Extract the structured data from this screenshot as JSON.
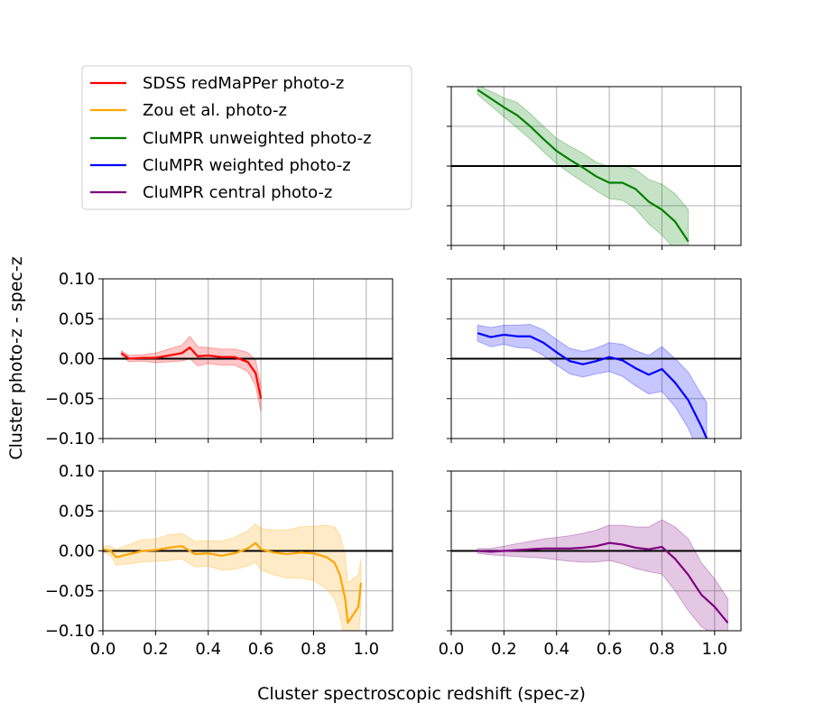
{
  "figure": {
    "ylabel": "Cluster photo-z - spec-z",
    "xlabel": "Cluster spectroscopic redshift (spec-z)"
  },
  "legend": {
    "placement": "top-left",
    "entries": [
      {
        "label": "SDSS redMaPPer photo-z",
        "color": "#ff0000"
      },
      {
        "label": "Zou et al. photo-z",
        "color": "#ffa500"
      },
      {
        "label": "CluMPR unweighted photo-z",
        "color": "#008000"
      },
      {
        "label": "CluMPR weighted photo-z",
        "color": "#0000ff"
      },
      {
        "label": "CluMPR central photo-z",
        "color": "#800080"
      }
    ]
  },
  "axes": {
    "xticks": [
      "0.0",
      "0.2",
      "0.4",
      "0.6",
      "0.8",
      "1.0"
    ],
    "yticks": [
      "0.10",
      "0.05",
      "0.00",
      "−0.05",
      "−0.10"
    ]
  },
  "chart_data": [
    {
      "type": "line",
      "series_name": "CluMPR unweighted photo-z",
      "color": "#008000",
      "xlim": [
        0,
        1.1
      ],
      "ylim": [
        -0.1,
        0.1
      ],
      "grid": true,
      "x": [
        0.1,
        0.15,
        0.2,
        0.25,
        0.3,
        0.35,
        0.4,
        0.45,
        0.5,
        0.55,
        0.6,
        0.65,
        0.7,
        0.75,
        0.8,
        0.85,
        0.9
      ],
      "y": [
        0.096,
        0.085,
        0.074,
        0.064,
        0.05,
        0.034,
        0.019,
        0.008,
        -0.002,
        -0.013,
        -0.021,
        -0.021,
        -0.029,
        -0.045,
        -0.055,
        -0.07,
        -0.095
      ],
      "band_halfwidth": [
        0.006,
        0.009,
        0.012,
        0.016,
        0.016,
        0.016,
        0.016,
        0.017,
        0.018,
        0.018,
        0.02,
        0.022,
        0.025,
        0.028,
        0.032,
        0.035,
        0.04
      ]
    },
    {
      "type": "line",
      "series_name": "SDSS redMaPPer photo-z",
      "color": "#ff0000",
      "xlim": [
        0,
        1.1
      ],
      "ylim": [
        -0.1,
        0.1
      ],
      "grid": true,
      "x": [
        0.07,
        0.1,
        0.15,
        0.2,
        0.25,
        0.3,
        0.33,
        0.36,
        0.4,
        0.45,
        0.5,
        0.55,
        0.58,
        0.6
      ],
      "y": [
        0.007,
        0.0,
        0.001,
        0.001,
        0.004,
        0.007,
        0.014,
        0.003,
        0.004,
        0.002,
        0.002,
        -0.004,
        -0.018,
        -0.05
      ],
      "band_halfwidth": [
        0.003,
        0.004,
        0.004,
        0.006,
        0.008,
        0.01,
        0.014,
        0.012,
        0.01,
        0.01,
        0.01,
        0.012,
        0.016,
        0.016
      ]
    },
    {
      "type": "line",
      "series_name": "CluMPR weighted photo-z",
      "color": "#0000ff",
      "xlim": [
        0,
        1.1
      ],
      "ylim": [
        -0.1,
        0.1
      ],
      "grid": true,
      "x": [
        0.1,
        0.15,
        0.2,
        0.25,
        0.3,
        0.35,
        0.4,
        0.45,
        0.5,
        0.55,
        0.6,
        0.65,
        0.7,
        0.75,
        0.8,
        0.85,
        0.9,
        0.95,
        0.97
      ],
      "y": [
        0.032,
        0.027,
        0.03,
        0.028,
        0.028,
        0.02,
        0.008,
        -0.003,
        -0.007,
        -0.003,
        0.002,
        -0.002,
        -0.012,
        -0.02,
        -0.013,
        -0.03,
        -0.052,
        -0.085,
        -0.1
      ],
      "band_halfwidth": [
        0.01,
        0.012,
        0.012,
        0.014,
        0.015,
        0.016,
        0.016,
        0.016,
        0.016,
        0.016,
        0.018,
        0.02,
        0.022,
        0.024,
        0.028,
        0.03,
        0.035,
        0.04,
        0.045
      ]
    },
    {
      "type": "line",
      "series_name": "Zou et al. photo-z",
      "color": "#ffa500",
      "xlim": [
        0,
        1.1
      ],
      "ylim": [
        -0.1,
        0.1
      ],
      "grid": true,
      "x": [
        0.0,
        0.03,
        0.05,
        0.1,
        0.15,
        0.2,
        0.25,
        0.3,
        0.35,
        0.4,
        0.45,
        0.5,
        0.55,
        0.58,
        0.6,
        0.65,
        0.7,
        0.75,
        0.8,
        0.85,
        0.88,
        0.9,
        0.92,
        0.93,
        0.97,
        0.98
      ],
      "y": [
        0.002,
        0.0,
        -0.008,
        -0.004,
        0.0,
        0.001,
        0.004,
        0.006,
        -0.004,
        -0.003,
        -0.006,
        -0.003,
        0.003,
        0.01,
        0.002,
        -0.002,
        -0.004,
        -0.002,
        -0.003,
        -0.008,
        -0.015,
        -0.03,
        -0.06,
        -0.09,
        -0.07,
        -0.04
      ],
      "band_halfwidth": [
        0.004,
        0.006,
        0.01,
        0.012,
        0.014,
        0.014,
        0.016,
        0.016,
        0.016,
        0.016,
        0.018,
        0.02,
        0.022,
        0.024,
        0.026,
        0.028,
        0.03,
        0.032,
        0.034,
        0.04,
        0.045,
        0.05,
        0.055,
        0.05,
        0.04,
        0.03
      ]
    },
    {
      "type": "line",
      "series_name": "CluMPR central photo-z",
      "color": "#800080",
      "xlim": [
        0,
        1.1
      ],
      "ylim": [
        -0.1,
        0.1
      ],
      "grid": true,
      "x": [
        0.1,
        0.15,
        0.2,
        0.25,
        0.3,
        0.35,
        0.4,
        0.45,
        0.5,
        0.55,
        0.6,
        0.65,
        0.7,
        0.75,
        0.8,
        0.85,
        0.9,
        0.95,
        1.0,
        1.05
      ],
      "y": [
        0.0,
        -0.001,
        0.0,
        0.001,
        0.002,
        0.003,
        0.003,
        0.003,
        0.004,
        0.006,
        0.01,
        0.008,
        0.004,
        0.002,
        0.005,
        -0.01,
        -0.03,
        -0.055,
        -0.07,
        -0.09
      ],
      "band_halfwidth": [
        0.003,
        0.004,
        0.006,
        0.008,
        0.01,
        0.012,
        0.014,
        0.016,
        0.018,
        0.02,
        0.022,
        0.024,
        0.026,
        0.028,
        0.034,
        0.04,
        0.045,
        0.04,
        0.035,
        0.03
      ]
    }
  ]
}
